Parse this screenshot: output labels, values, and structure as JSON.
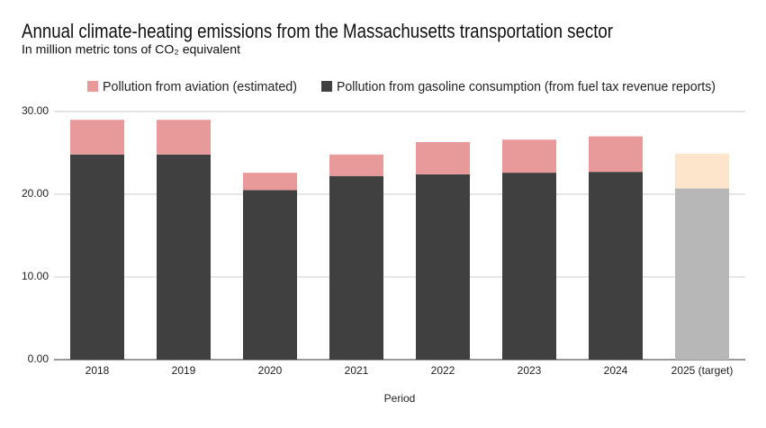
{
  "chart_data": {
    "type": "stacked_bar",
    "title": "Annual climate-heating emissions from the Massachusetts transportation sector",
    "subtitle": "In million metric tons of CO₂ equivalent",
    "x_label": "Period",
    "categories": [
      "2018",
      "2019",
      "2020",
      "2021",
      "2022",
      "2023",
      "2024",
      "2025 (target)"
    ],
    "series": [
      {
        "name": "Pollution from aviation (estimated)",
        "color": "#e89a9a",
        "colors": [
          "#e89a9a",
          "#e89a9a",
          "#e89a9a",
          "#e89a9a",
          "#e89a9a",
          "#e89a9a",
          "#e89a9a",
          "#fde5cb"
        ],
        "values": [
          4.2,
          4.2,
          2.1,
          2.6,
          3.9,
          4.0,
          4.3,
          4.2
        ]
      },
      {
        "name": "Pollution from gasoline consumption (from fuel tax revenue reports)",
        "color": "#404040",
        "colors": [
          "#404040",
          "#404040",
          "#404040",
          "#404040",
          "#404040",
          "#404040",
          "#404040",
          "#b7b7b7"
        ],
        "values": [
          24.8,
          24.8,
          20.5,
          22.2,
          22.4,
          22.6,
          22.7,
          20.7
        ]
      }
    ],
    "ylim": [
      0,
      30
    ],
    "yticks": [
      {
        "value": 0,
        "label": "0.00"
      },
      {
        "value": 10,
        "label": "10.00"
      },
      {
        "value": 20,
        "label": "20.00"
      },
      {
        "value": 30,
        "label": "30.00"
      }
    ],
    "grid": true,
    "legend": "top"
  }
}
